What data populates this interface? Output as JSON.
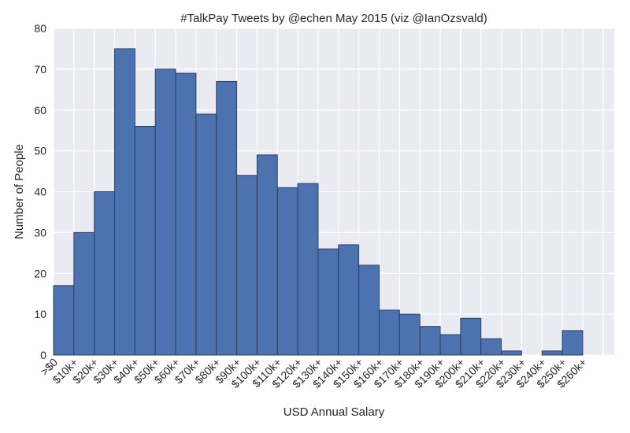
{
  "chart_data": {
    "type": "bar",
    "title": "#TalkPay Tweets by @echen May 2015 (viz @IanOzsvald)",
    "xlabel": "USD Annual Salary",
    "ylabel": "Number of People",
    "ylim": [
      0,
      80
    ],
    "yticks": [
      0,
      10,
      20,
      30,
      40,
      50,
      60,
      70,
      80
    ],
    "grid": true,
    "categories": [
      ">$0",
      "$10k+",
      "$20k+",
      "$30k+",
      "$40k+",
      "$50k+",
      "$60k+",
      "$70k+",
      "$80k+",
      "$90k+",
      "$100k+",
      "$110k+",
      "$120k+",
      "$130k+",
      "$140k+",
      "$150k+",
      "$160k+",
      "$170k+",
      "$180k+",
      "$190k+",
      "$200k+",
      "$210k+",
      "$220k+",
      "$230k+",
      "$240k+",
      "$250k+",
      "$260k+"
    ],
    "values": [
      17,
      30,
      40,
      75,
      56,
      70,
      69,
      59,
      67,
      44,
      49,
      41,
      42,
      26,
      27,
      22,
      11,
      10,
      7,
      5,
      9,
      4,
      1,
      0,
      1,
      6,
      0
    ],
    "colors": {
      "bar": "#4C72B0",
      "bar_edge": "#2f3f5c",
      "background": "#EAEAF2",
      "grid": "#ffffff"
    }
  }
}
